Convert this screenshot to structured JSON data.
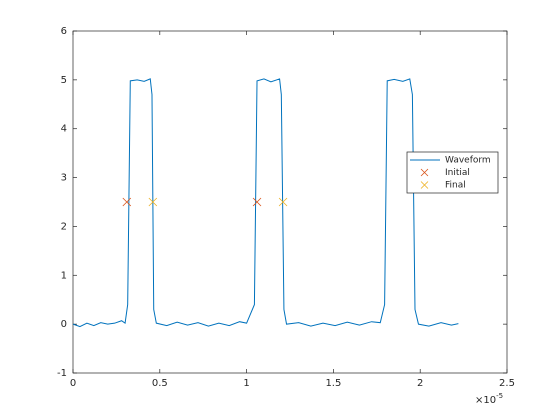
{
  "chart_data": {
    "type": "line",
    "x": [
      0,
      4e-07,
      8e-07,
      1.2e-06,
      1.6e-06,
      2e-06,
      2.4e-06,
      2.8e-06,
      3e-06,
      3.15e-06,
      3.3e-06,
      3.7e-06,
      4.1e-06,
      4.45e-06,
      4.55e-06,
      4.65e-06,
      4.8e-06,
      5.4e-06,
      6e-06,
      6.6e-06,
      7.2e-06,
      7.8e-06,
      8.4e-06,
      9e-06,
      9.6e-06,
      1e-05,
      1.045e-05,
      1.06e-05,
      1.1e-05,
      1.14e-05,
      1.19e-05,
      1.2e-05,
      1.215e-05,
      1.23e-05,
      1.3e-05,
      1.37e-05,
      1.44e-05,
      1.51e-05,
      1.58e-05,
      1.65e-05,
      1.72e-05,
      1.77e-05,
      1.795e-05,
      1.81e-05,
      1.85e-05,
      1.9e-05,
      1.94e-05,
      1.955e-05,
      1.97e-05,
      1.99e-05,
      2.05e-05,
      2.12e-05,
      2.18e-05,
      2.22e-05
    ],
    "series": [
      {
        "name": "Waveform",
        "color": "#0072bd",
        "marker": "line",
        "values": [
          0,
          -0.05,
          0.02,
          -0.03,
          0.03,
          0,
          0.02,
          0.07,
          0.02,
          0.4,
          4.98,
          5.0,
          4.97,
          5.02,
          4.7,
          0.3,
          0.02,
          -0.03,
          0.04,
          -0.02,
          0.03,
          -0.04,
          0.02,
          -0.03,
          0.05,
          0.02,
          0.4,
          4.98,
          5.02,
          4.96,
          5.02,
          4.7,
          0.3,
          0.0,
          0.03,
          -0.04,
          0.02,
          -0.03,
          0.04,
          -0.02,
          0.05,
          0.03,
          0.4,
          4.98,
          5.01,
          4.97,
          5.02,
          4.7,
          0.3,
          0.0,
          -0.04,
          0.03,
          -0.02,
          0.01
        ]
      },
      {
        "name": "Initial",
        "color": "#d95319",
        "marker": "x",
        "x": [
          3.1e-06,
          1.06e-05
        ],
        "values": [
          2.5,
          2.5
        ]
      },
      {
        "name": "Final",
        "color": "#edb120",
        "marker": "x",
        "x": [
          4.6e-06,
          1.21e-05
        ],
        "values": [
          2.5,
          2.5
        ]
      }
    ],
    "xlim": [
      0,
      2.5e-05
    ],
    "xticks": [
      0,
      {
        "value": 5e-06,
        "label": "0.5"
      },
      {
        "value": 1e-05,
        "label": "1"
      },
      {
        "value": 1.5e-05,
        "label": "1.5"
      },
      {
        "value": 2e-05,
        "label": "2"
      },
      {
        "value": 2.5e-05,
        "label": "2.5"
      }
    ],
    "x_scale_base": "×10",
    "x_scale_exponent": "-5",
    "ylim": [
      -1,
      6
    ],
    "yticks": [
      -1,
      0,
      1,
      2,
      3,
      4,
      5,
      6
    ],
    "grid": false,
    "legend": "right"
  }
}
